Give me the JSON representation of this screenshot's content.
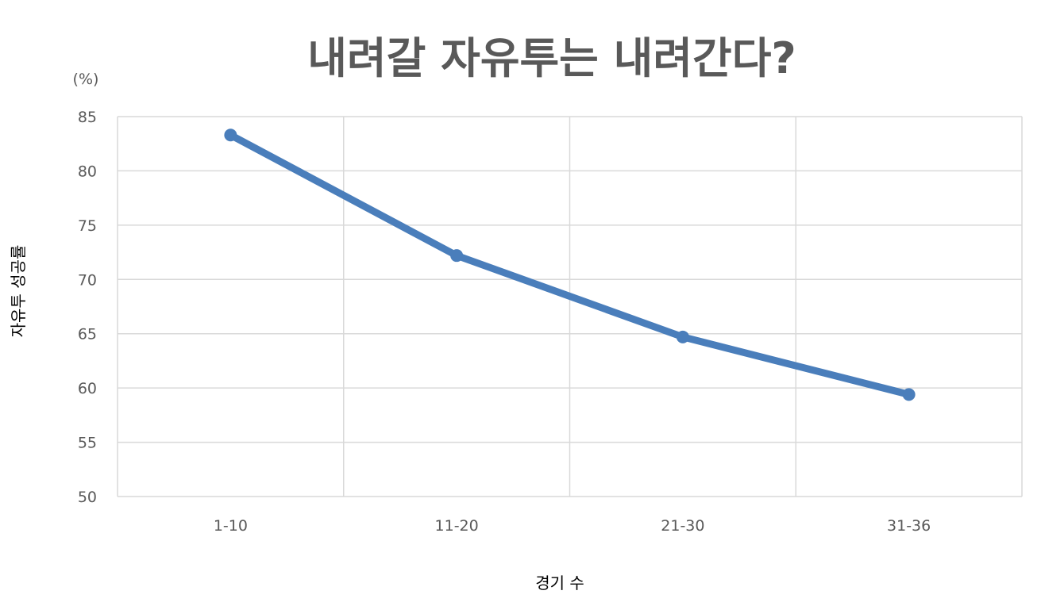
{
  "chart_data": {
    "type": "line",
    "title": "내려갈 자유투는 내려간다?",
    "unit_label": "(%)",
    "xlabel": "경기 수",
    "ylabel": "자유투 성공률",
    "categories": [
      "1-10",
      "11-20",
      "21-30",
      "31-36"
    ],
    "values": [
      83.3,
      72.2,
      64.7,
      59.4
    ],
    "ylim": [
      50,
      85
    ],
    "yticks": [
      50,
      55,
      60,
      65,
      70,
      75,
      80,
      85
    ],
    "grid": true,
    "markers": true,
    "line_color": "#4a7ebb",
    "grid_color": "#d9d9d9"
  }
}
